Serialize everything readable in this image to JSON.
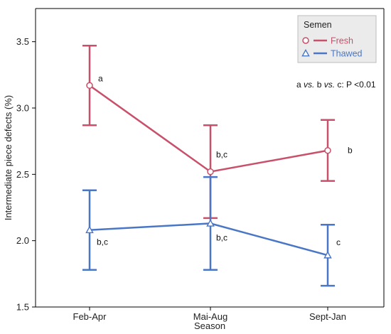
{
  "chart_data": {
    "type": "line",
    "xlabel": "Season",
    "ylabel": "Intermediate piece defects (%)",
    "ylim": [
      1.5,
      3.75
    ],
    "yticks": [
      1.5,
      2.0,
      2.5,
      3.0,
      3.5
    ],
    "ytick_labels": [
      "1.5",
      "2.0",
      "2.5",
      "3.0",
      "3.5"
    ],
    "categories": [
      "Feb-Apr",
      "Mai-Aug",
      "Sept-Jan"
    ],
    "legend": {
      "title": "Semen",
      "position": "top-right"
    },
    "series": [
      {
        "name": "Fresh",
        "color": "#c8506a",
        "marker": "circle",
        "values": [
          3.17,
          2.52,
          2.68
        ],
        "lower": [
          2.87,
          2.17,
          2.45
        ],
        "upper": [
          3.47,
          2.87,
          2.91
        ],
        "labels": [
          "a",
          "b,c",
          "b"
        ]
      },
      {
        "name": "Thawed",
        "color": "#4a76c6",
        "marker": "triangle",
        "values": [
          2.08,
          2.13,
          1.89
        ],
        "lower": [
          1.78,
          1.78,
          1.66
        ],
        "upper": [
          2.38,
          2.48,
          2.12
        ],
        "labels": [
          "b,c",
          "b,c",
          "c"
        ]
      }
    ],
    "annotation": {
      "parts": [
        {
          "text": "a ",
          "italic": false
        },
        {
          "text": "vs.",
          "italic": true
        },
        {
          "text": " b ",
          "italic": false
        },
        {
          "text": "vs.",
          "italic": true
        },
        {
          "text": " c: P <0.01",
          "italic": false
        }
      ]
    },
    "grid": false
  }
}
